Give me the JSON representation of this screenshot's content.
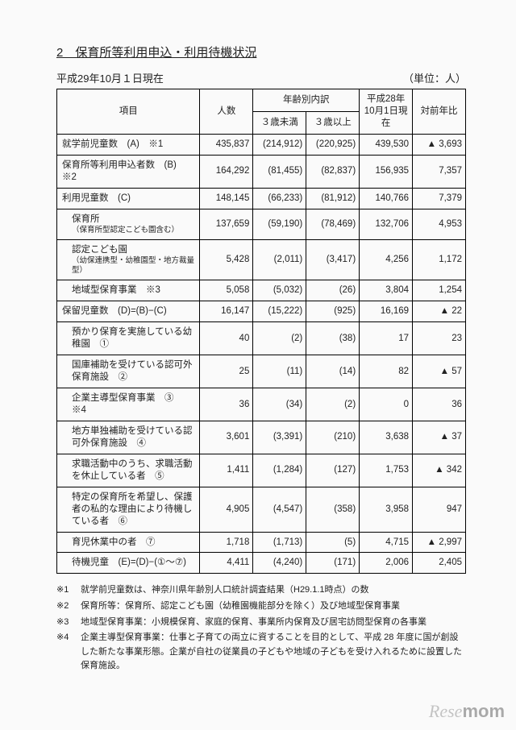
{
  "title": "2　保育所等利用申込・利用待機状況",
  "date_line": "平成29年10月１日現在",
  "unit_label": "（単位：人）",
  "headers": {
    "item": "項目",
    "count": "人数",
    "age_split": "年齢別内訳",
    "under3": "３歳未満",
    "over3": "３歳以上",
    "prev_year": "平成28年\n10月1日現在",
    "yoy": "対前年比"
  },
  "rows": [
    {
      "label": "就学前児童数　(A)　※1",
      "indent": false,
      "count": "435,837",
      "u3": "(214,912)",
      "o3": "(220,925)",
      "prev": "439,530",
      "yoy": "▲ 3,693"
    },
    {
      "label": "保育所等利用申込者数　(B)　※2",
      "indent": false,
      "count": "164,292",
      "u3": "(81,455)",
      "o3": "(82,837)",
      "prev": "156,935",
      "yoy": "7,357"
    },
    {
      "label": "利用児童数　(C)",
      "indent": false,
      "count": "148,145",
      "u3": "(66,233)",
      "o3": "(81,912)",
      "prev": "140,766",
      "yoy": "7,379"
    },
    {
      "label": "保育所",
      "sub": "（保育所型認定こども園含む）",
      "indent": true,
      "count": "137,659",
      "u3": "(59,190)",
      "o3": "(78,469)",
      "prev": "132,706",
      "yoy": "4,953"
    },
    {
      "label": "認定こども園",
      "sub": "（幼保連携型・幼稚園型・地方裁量型）",
      "indent": true,
      "count": "5,428",
      "u3": "(2,011)",
      "o3": "(3,417)",
      "prev": "4,256",
      "yoy": "1,172"
    },
    {
      "label": "地域型保育事業　※3",
      "indent": true,
      "count": "5,058",
      "u3": "(5,032)",
      "o3": "(26)",
      "prev": "3,804",
      "yoy": "1,254"
    },
    {
      "label": "保留児童数　(D)=(B)−(C)",
      "indent": false,
      "count": "16,147",
      "u3": "(15,222)",
      "o3": "(925)",
      "prev": "16,169",
      "yoy": "▲ 22"
    },
    {
      "label": "預かり保育を実施している幼稚園　①",
      "indent": true,
      "count": "40",
      "u3": "(2)",
      "o3": "(38)",
      "prev": "17",
      "yoy": "23"
    },
    {
      "label": "国庫補助を受けている認可外保育施設　②",
      "indent": true,
      "count": "25",
      "u3": "(11)",
      "o3": "(14)",
      "prev": "82",
      "yoy": "▲ 57"
    },
    {
      "label": "企業主導型保育事業　③　※4",
      "indent": true,
      "count": "36",
      "u3": "(34)",
      "o3": "(2)",
      "prev": "0",
      "yoy": "36"
    },
    {
      "label": "地方単独補助を受けている認可外保育施設　④",
      "indent": true,
      "count": "3,601",
      "u3": "(3,391)",
      "o3": "(210)",
      "prev": "3,638",
      "yoy": "▲ 37"
    },
    {
      "label": "求職活動中のうち、求職活動を休止している者　⑤",
      "indent": true,
      "count": "1,411",
      "u3": "(1,284)",
      "o3": "(127)",
      "prev": "1,753",
      "yoy": "▲ 342"
    },
    {
      "label": "特定の保育所を希望し、保護者の私的な理由により待機している者　⑥",
      "indent": true,
      "count": "4,905",
      "u3": "(4,547)",
      "o3": "(358)",
      "prev": "3,958",
      "yoy": "947"
    },
    {
      "label": "育児休業中の者　⑦",
      "indent": true,
      "count": "1,718",
      "u3": "(1,713)",
      "o3": "(5)",
      "prev": "4,715",
      "yoy": "▲ 2,997"
    },
    {
      "label": "待機児童　(E)=(D)−(①〜⑦)",
      "indent": true,
      "count": "4,411",
      "u3": "(4,240)",
      "o3": "(171)",
      "prev": "2,006",
      "yoy": "2,405"
    }
  ],
  "notes": [
    {
      "tag": "※1",
      "text": "就学前児童数は、神奈川県年齢別人口統計調査結果（H29.1.1時点）の数"
    },
    {
      "tag": "※2",
      "text": "保育所等：保育所、認定こども園（幼稚園機能部分を除く）及び地域型保育事業"
    },
    {
      "tag": "※3",
      "text": "地域型保育事業：小規模保育、家庭的保育、事業所内保育及び居宅訪問型保育の各事業"
    },
    {
      "tag": "※4",
      "text": "企業主導型保育事業：仕事と子育ての両立に資することを目的として、平成 28 年度に国が創設した新たな事業形態。企業が自社の従業員の子どもや地域の子どもを受け入れるために設置した保育施設。"
    }
  ],
  "watermark": {
    "a": "Rese",
    "b": "mom"
  }
}
